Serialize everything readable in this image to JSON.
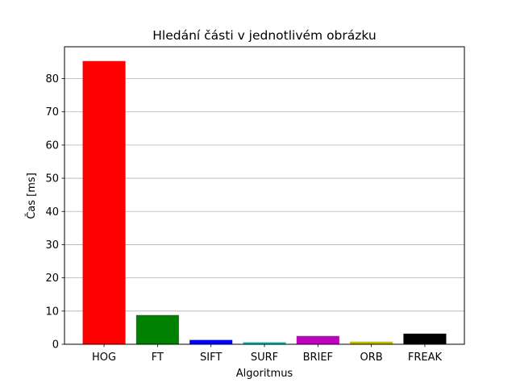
{
  "chart_data": {
    "type": "bar",
    "title": "Hledání části v jednotlivém obrázku",
    "xlabel": "Algoritmus",
    "ylabel": "Čas [ms]",
    "categories": [
      "HOG",
      "FT",
      "SIFT",
      "SURF",
      "BRIEF",
      "ORB",
      "FREAK"
    ],
    "values": [
      85.3,
      8.8,
      1.3,
      0.6,
      2.5,
      0.8,
      3.2
    ],
    "colors": [
      "#ff0000",
      "#008000",
      "#0000ff",
      "#00bfbf",
      "#bf00bf",
      "#bfbf00",
      "#000000"
    ],
    "ylim": [
      0,
      89.6
    ],
    "yticks": [
      0,
      10,
      20,
      30,
      40,
      50,
      60,
      70,
      80
    ],
    "grid": "y-major"
  }
}
